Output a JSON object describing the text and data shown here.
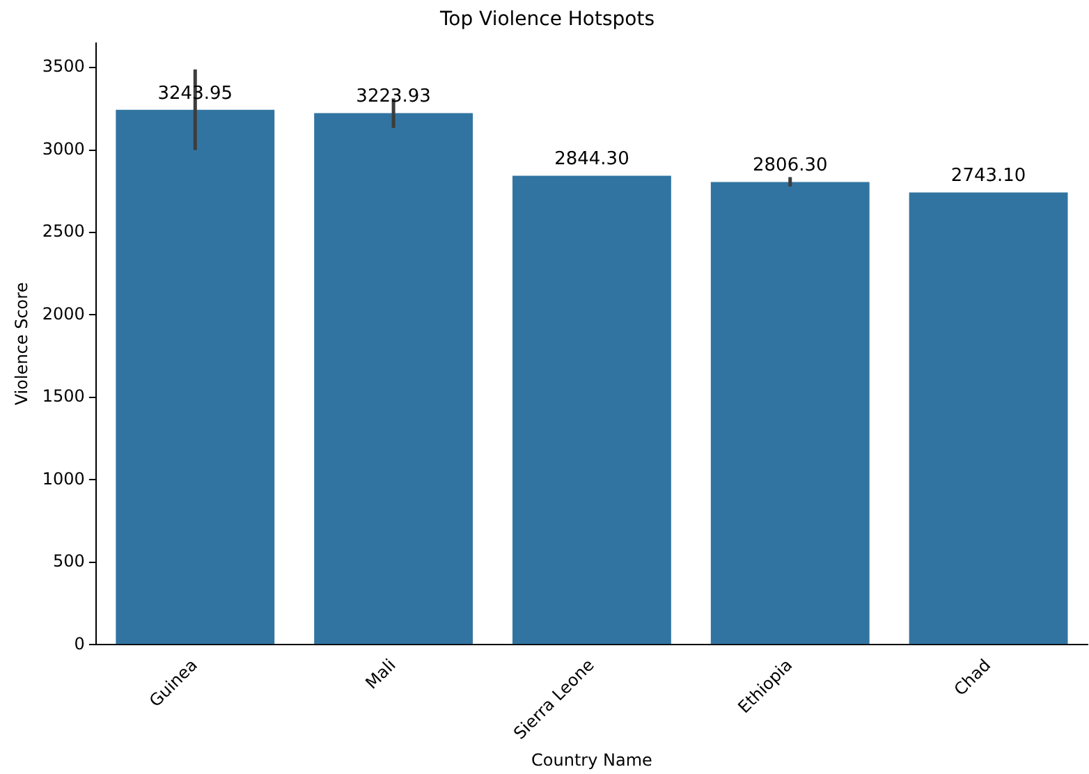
{
  "chart_data": {
    "type": "bar",
    "title": "Top Violence Hotspots",
    "xlabel": "Country Name",
    "ylabel": "Violence Score",
    "categories": [
      "Guinea",
      "Mali",
      "Sierra Leone",
      "Ethiopia",
      "Chad"
    ],
    "values": [
      3243.95,
      3223.93,
      2844.3,
      2806.3,
      2743.1
    ],
    "value_labels": [
      "3243.95",
      "3223.93",
      "2844.30",
      "2806.30",
      "2743.10"
    ],
    "errors": [
      [
        3000,
        3489
      ],
      [
        3134,
        3313
      ],
      null,
      [
        2779,
        2836
      ],
      null
    ],
    "color": "#3274a1",
    "ylim": [
      0,
      3650
    ],
    "yticks": [
      0,
      500,
      1000,
      1500,
      2000,
      2500,
      3000,
      3500
    ],
    "grid": false,
    "legend": false
  }
}
